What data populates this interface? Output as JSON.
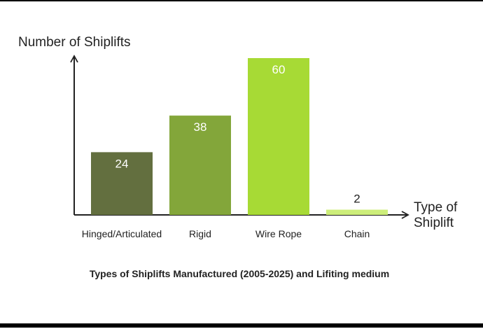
{
  "chart_data": {
    "type": "bar",
    "title": "Types of Shiplifts Manufactured (2005-2025) and Lifiting medium",
    "ylabel": "Number of Shiplifts",
    "xlabel_lines": [
      "Type of",
      "Shiplift"
    ],
    "categories": [
      "Hinged/Articulated",
      "Rigid",
      "Wire Rope",
      "Chain"
    ],
    "values": [
      24,
      38,
      60,
      2
    ],
    "value_labels": [
      "24",
      "38",
      "60",
      "2"
    ],
    "colors": [
      "#636f3f",
      "#83a63a",
      "#a7da35",
      "#cdee7a"
    ],
    "ylim": [
      0,
      60
    ],
    "grid": false,
    "legend": "none"
  }
}
